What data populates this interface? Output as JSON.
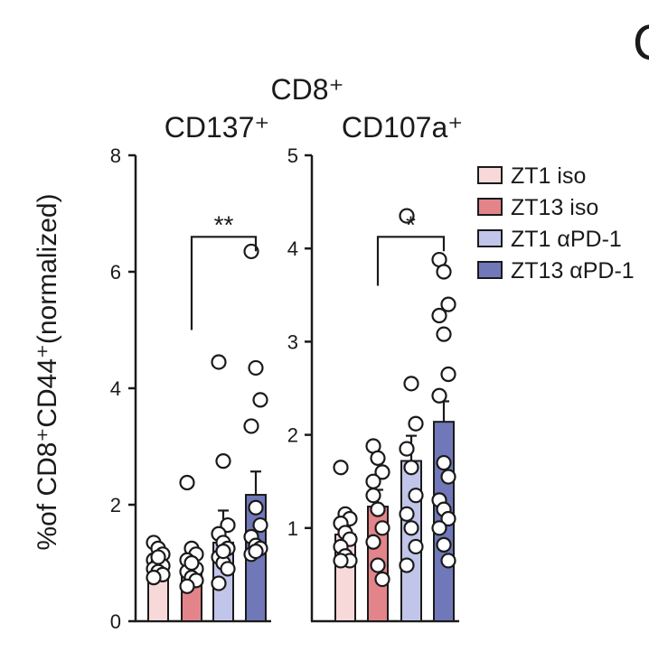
{
  "header": {
    "group_title": "CD8⁺",
    "partial_panel_letter": "C"
  },
  "y_axis_label": "%of CD8⁺CD44⁺(normalized)",
  "legend": {
    "items": [
      {
        "label": "ZT1 iso",
        "color": "#f7d9d9"
      },
      {
        "label": "ZT13 iso",
        "color": "#e3848b"
      },
      {
        "label": "ZT1 αPD-1",
        "color": "#c2c5ea"
      },
      {
        "label": "ZT13 αPD-1",
        "color": "#7078b9"
      }
    ]
  },
  "chart_data": [
    {
      "type": "bar",
      "title": "CD137⁺",
      "ylabel": "%of CD8⁺CD44⁺(normalized)",
      "ylim": [
        0,
        8
      ],
      "yticks": [
        0,
        2,
        4,
        6,
        8
      ],
      "categories": [
        "ZT1 iso",
        "ZT13 iso",
        "ZT1 αPD-1",
        "ZT13 αPD-1"
      ],
      "colors": [
        "#f7d9d9",
        "#e3848b",
        "#c2c5ea",
        "#7078b9"
      ],
      "values": [
        1.0,
        0.9,
        1.35,
        2.17
      ],
      "errors": [
        0.08,
        0.1,
        0.55,
        0.4
      ],
      "points": [
        [
          1.35,
          1.25,
          1.15,
          1.05,
          1.0,
          0.95,
          0.9,
          0.85,
          0.8,
          0.75,
          1.1
        ],
        [
          2.38,
          1.25,
          1.15,
          1.05,
          0.95,
          0.9,
          0.85,
          0.75,
          0.7,
          0.6,
          1.0
        ],
        [
          4.45,
          2.75,
          1.65,
          1.5,
          1.35,
          1.25,
          1.1,
          1.0,
          0.9,
          0.65,
          1.2
        ],
        [
          6.35,
          4.35,
          3.8,
          3.35,
          1.95,
          1.65,
          1.45,
          1.3,
          1.25,
          1.15,
          1.2
        ]
      ],
      "significance": {
        "from": 1,
        "to": 3,
        "label": "**",
        "height": 5.0
      }
    },
    {
      "type": "bar",
      "title": "CD107a⁺",
      "ylim": [
        0,
        5
      ],
      "yticks": [
        1,
        2,
        3,
        4,
        5
      ],
      "categories": [
        "ZT1 iso",
        "ZT13 iso",
        "ZT1 αPD-1",
        "ZT13 αPD-1"
      ],
      "colors": [
        "#f7d9d9",
        "#e3848b",
        "#c2c5ea",
        "#7078b9"
      ],
      "values": [
        0.93,
        1.23,
        1.72,
        2.14
      ],
      "errors": [
        0.08,
        0.18,
        0.27,
        0.22
      ],
      "points": [
        [
          1.65,
          1.15,
          1.1,
          1.05,
          0.95,
          0.88,
          0.8,
          0.7,
          0.65,
          0.65
        ],
        [
          1.88,
          1.75,
          1.6,
          1.5,
          1.2,
          1.0,
          0.85,
          0.6,
          0.45,
          1.35
        ],
        [
          4.35,
          2.55,
          2.12,
          1.85,
          1.65,
          1.35,
          1.15,
          1.0,
          0.8,
          0.6
        ],
        [
          3.88,
          3.75,
          3.4,
          3.28,
          3.08,
          2.65,
          2.42,
          1.7,
          1.55,
          1.3,
          1.2,
          1.1,
          1.0,
          0.82,
          0.65
        ]
      ],
      "significance": {
        "from": 1,
        "to": 3,
        "label": "*",
        "height": 3.6
      }
    }
  ]
}
